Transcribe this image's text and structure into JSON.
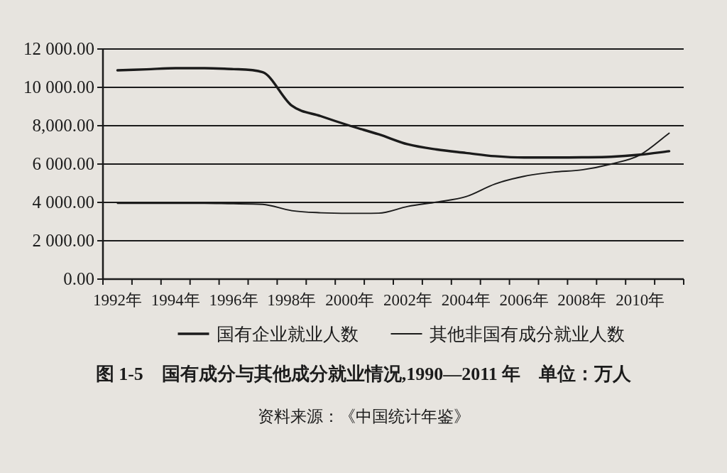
{
  "chart_data": {
    "type": "line",
    "title": "图 1-5　国有成分与其他成分就业情况,1990—2011 年　单位：万人",
    "annotations": [
      "资料来源：《中国统计年鉴》"
    ],
    "categories": [
      "1992年",
      null,
      "1994年",
      null,
      "1996年",
      null,
      "1998年",
      null,
      "2000年",
      null,
      "2002年",
      null,
      "2004年",
      null,
      "2006年",
      null,
      "2008年",
      null,
      "2010年",
      null
    ],
    "series": [
      {
        "name": "国有企业就业人数",
        "color": "#1b1b1b",
        "values": [
          10890,
          10940,
          11000,
          11000,
          10950,
          10790,
          9050,
          8500,
          8000,
          7550,
          7030,
          6760,
          6580,
          6410,
          6340,
          6340,
          6350,
          6380,
          6490,
          6670
        ]
      },
      {
        "name": "其他非国有成分就业人数",
        "color": "#1b1b1b",
        "values": [
          3950,
          3950,
          3950,
          3950,
          3930,
          3900,
          3570,
          3460,
          3430,
          3440,
          3790,
          4020,
          4300,
          4960,
          5360,
          5580,
          5700,
          6000,
          6480,
          7610
        ]
      }
    ],
    "ylim": [
      0,
      12000
    ],
    "yticks": [
      {
        "value": 0,
        "label": "0.00"
      },
      {
        "value": 2000,
        "label": "2 000.00"
      },
      {
        "value": 4000,
        "label": "4 000.00"
      },
      {
        "value": 6000,
        "label": "6 000.00"
      },
      {
        "value": 8000,
        "label": "8,000.00"
      },
      {
        "value": 10000,
        "label": "10 000.00"
      },
      {
        "value": 12000,
        "label": "12 000.00"
      }
    ],
    "grid": "y",
    "legend": "bottom",
    "line_style": "solid"
  }
}
